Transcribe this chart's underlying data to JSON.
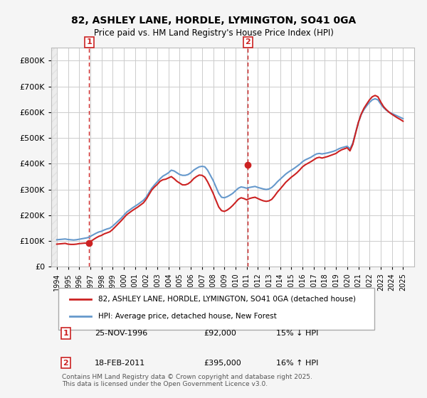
{
  "title": "82, ASHLEY LANE, HORDLE, LYMINGTON, SO41 0GA",
  "subtitle": "Price paid vs. HM Land Registry's House Price Index (HPI)",
  "ylabel": "",
  "xlim": [
    1993.5,
    2026
  ],
  "ylim": [
    0,
    850000
  ],
  "yticks": [
    0,
    100000,
    200000,
    300000,
    400000,
    500000,
    600000,
    700000,
    800000
  ],
  "ytick_labels": [
    "£0",
    "£100K",
    "£200K",
    "£300K",
    "£400K",
    "£500K",
    "£600K",
    "£700K",
    "£800K"
  ],
  "hpi_color": "#6699cc",
  "price_color": "#cc2222",
  "background_color": "#f5f5f5",
  "plot_bg_color": "#ffffff",
  "grid_color": "#cccccc",
  "marker1_x": 1996.9,
  "marker1_y": 92000,
  "marker2_x": 2011.12,
  "marker2_y": 395000,
  "sale1_label": "1",
  "sale2_label": "2",
  "legend_line1": "82, ASHLEY LANE, HORDLE, LYMINGTON, SO41 0GA (detached house)",
  "legend_line2": "HPI: Average price, detached house, New Forest",
  "annotation1_date": "25-NOV-1996",
  "annotation1_price": "£92,000",
  "annotation1_hpi": "15% ↓ HPI",
  "annotation2_date": "18-FEB-2011",
  "annotation2_price": "£395,000",
  "annotation2_hpi": "16% ↑ HPI",
  "footer": "Contains HM Land Registry data © Crown copyright and database right 2025.\nThis data is licensed under the Open Government Licence v3.0.",
  "hpi_data_x": [
    1994.0,
    1994.25,
    1994.5,
    1994.75,
    1995.0,
    1995.25,
    1995.5,
    1995.75,
    1996.0,
    1996.25,
    1996.5,
    1996.75,
    1997.0,
    1997.25,
    1997.5,
    1997.75,
    1998.0,
    1998.25,
    1998.5,
    1998.75,
    1999.0,
    1999.25,
    1999.5,
    1999.75,
    2000.0,
    2000.25,
    2000.5,
    2000.75,
    2001.0,
    2001.25,
    2001.5,
    2001.75,
    2002.0,
    2002.25,
    2002.5,
    2002.75,
    2003.0,
    2003.25,
    2003.5,
    2003.75,
    2004.0,
    2004.25,
    2004.5,
    2004.75,
    2005.0,
    2005.25,
    2005.5,
    2005.75,
    2006.0,
    2006.25,
    2006.5,
    2006.75,
    2007.0,
    2007.25,
    2007.5,
    2007.75,
    2008.0,
    2008.25,
    2008.5,
    2008.75,
    2009.0,
    2009.25,
    2009.5,
    2009.75,
    2010.0,
    2010.25,
    2010.5,
    2010.75,
    2011.0,
    2011.25,
    2011.5,
    2011.75,
    2012.0,
    2012.25,
    2012.5,
    2012.75,
    2013.0,
    2013.25,
    2013.5,
    2013.75,
    2014.0,
    2014.25,
    2014.5,
    2014.75,
    2015.0,
    2015.25,
    2015.5,
    2015.75,
    2016.0,
    2016.25,
    2016.5,
    2016.75,
    2017.0,
    2017.25,
    2017.5,
    2017.75,
    2018.0,
    2018.25,
    2018.5,
    2018.75,
    2019.0,
    2019.25,
    2019.5,
    2019.75,
    2020.0,
    2020.25,
    2020.5,
    2020.75,
    2021.0,
    2021.25,
    2021.5,
    2021.75,
    2022.0,
    2022.25,
    2022.5,
    2022.75,
    2023.0,
    2023.25,
    2023.5,
    2023.75,
    2024.0,
    2024.25,
    2024.5,
    2024.75,
    2025.0
  ],
  "hpi_data_y": [
    105000,
    106000,
    107000,
    108000,
    106000,
    105000,
    104000,
    105000,
    107000,
    109000,
    111000,
    113000,
    118000,
    124000,
    130000,
    135000,
    138000,
    143000,
    147000,
    150000,
    158000,
    168000,
    178000,
    188000,
    200000,
    212000,
    220000,
    228000,
    235000,
    242000,
    250000,
    258000,
    270000,
    288000,
    305000,
    318000,
    330000,
    342000,
    352000,
    358000,
    365000,
    375000,
    372000,
    365000,
    358000,
    355000,
    355000,
    358000,
    365000,
    375000,
    382000,
    388000,
    390000,
    388000,
    375000,
    355000,
    335000,
    310000,
    285000,
    270000,
    268000,
    272000,
    278000,
    285000,
    295000,
    305000,
    310000,
    308000,
    305000,
    308000,
    310000,
    312000,
    308000,
    305000,
    302000,
    300000,
    302000,
    308000,
    318000,
    330000,
    340000,
    350000,
    360000,
    368000,
    375000,
    382000,
    390000,
    398000,
    408000,
    415000,
    420000,
    425000,
    432000,
    438000,
    440000,
    438000,
    440000,
    442000,
    445000,
    448000,
    452000,
    458000,
    462000,
    465000,
    468000,
    458000,
    480000,
    520000,
    560000,
    590000,
    610000,
    625000,
    638000,
    648000,
    652000,
    648000,
    632000,
    618000,
    608000,
    600000,
    595000,
    590000,
    585000,
    580000,
    575000
  ],
  "price_data_x": [
    1994.0,
    1994.25,
    1994.5,
    1994.75,
    1995.0,
    1995.25,
    1995.5,
    1995.75,
    1996.0,
    1996.25,
    1996.5,
    1996.75,
    1997.0,
    1997.25,
    1997.5,
    1997.75,
    1998.0,
    1998.25,
    1998.5,
    1998.75,
    1999.0,
    1999.25,
    1999.5,
    1999.75,
    2000.0,
    2000.25,
    2000.5,
    2000.75,
    2001.0,
    2001.25,
    2001.5,
    2001.75,
    2002.0,
    2002.25,
    2002.5,
    2002.75,
    2003.0,
    2003.25,
    2003.5,
    2003.75,
    2004.0,
    2004.25,
    2004.5,
    2004.75,
    2005.0,
    2005.25,
    2005.5,
    2005.75,
    2006.0,
    2006.25,
    2006.5,
    2006.75,
    2007.0,
    2007.25,
    2007.5,
    2007.75,
    2008.0,
    2008.25,
    2008.5,
    2008.75,
    2009.0,
    2009.25,
    2009.5,
    2009.75,
    2010.0,
    2010.25,
    2010.5,
    2010.75,
    2011.0,
    2011.25,
    2011.5,
    2011.75,
    2012.0,
    2012.25,
    2012.5,
    2012.75,
    2013.0,
    2013.25,
    2013.5,
    2013.75,
    2014.0,
    2014.25,
    2014.5,
    2014.75,
    2015.0,
    2015.25,
    2015.5,
    2015.75,
    2016.0,
    2016.25,
    2016.5,
    2016.75,
    2017.0,
    2017.25,
    2017.5,
    2017.75,
    2018.0,
    2018.25,
    2018.5,
    2018.75,
    2019.0,
    2019.25,
    2019.5,
    2019.75,
    2020.0,
    2020.25,
    2020.5,
    2020.75,
    2021.0,
    2021.25,
    2021.5,
    2021.75,
    2022.0,
    2022.25,
    2022.5,
    2022.75,
    2023.0,
    2023.25,
    2023.5,
    2023.75,
    2024.0,
    2024.25,
    2024.5,
    2024.75,
    2025.0
  ],
  "price_data_y": [
    88000,
    89000,
    90000,
    91000,
    88000,
    87000,
    87000,
    88000,
    90000,
    91000,
    92000,
    92000,
    98000,
    105000,
    112000,
    118000,
    122000,
    128000,
    132000,
    136000,
    145000,
    156000,
    167000,
    178000,
    190000,
    202000,
    210000,
    218000,
    225000,
    232000,
    240000,
    248000,
    262000,
    280000,
    298000,
    310000,
    320000,
    332000,
    338000,
    340000,
    345000,
    350000,
    342000,
    332000,
    325000,
    318000,
    318000,
    322000,
    330000,
    342000,
    350000,
    356000,
    355000,
    348000,
    330000,
    308000,
    285000,
    258000,
    232000,
    218000,
    215000,
    220000,
    228000,
    238000,
    250000,
    262000,
    268000,
    265000,
    260000,
    265000,
    268000,
    270000,
    265000,
    260000,
    256000,
    254000,
    256000,
    262000,
    275000,
    290000,
    302000,
    315000,
    328000,
    338000,
    348000,
    356000,
    365000,
    376000,
    388000,
    396000,
    402000,
    408000,
    415000,
    422000,
    425000,
    422000,
    425000,
    428000,
    432000,
    436000,
    440000,
    448000,
    454000,
    458000,
    462000,
    450000,
    475000,
    518000,
    560000,
    592000,
    615000,
    632000,
    648000,
    660000,
    665000,
    660000,
    640000,
    622000,
    610000,
    600000,
    592000,
    585000,
    578000,
    572000,
    565000
  ]
}
